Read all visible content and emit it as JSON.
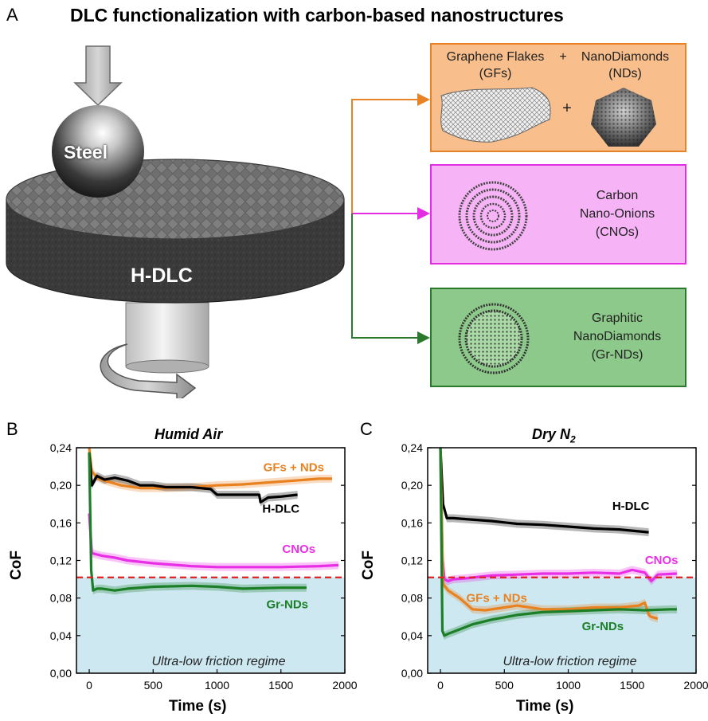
{
  "panel_a": {
    "letter": "A",
    "title": "DLC functionalization with carbon-based nanostructures",
    "ball_label": "Steel",
    "disk_label": "H-DLC",
    "boxes": {
      "gf_title": "Graphene Flakes",
      "gf_abbr": "(GFs)",
      "plus_top": "+",
      "nd_title": "NanoDiamonds",
      "nd_abbr": "(NDs)",
      "plus": "+",
      "cno_line1": "Carbon",
      "cno_line2": "Nano-Onions",
      "cno_line3": "(CNOs)",
      "grnd_line1": "Graphitic",
      "grnd_line2": "NanoDiamonds",
      "grnd_line3": "(Gr-NDs)"
    },
    "colors": {
      "orange": "#e88227",
      "pink": "#e22ee0",
      "green": "#2b7a2c"
    }
  },
  "panel_b": {
    "letter": "B",
    "title": "Humid Air",
    "region_label": "Ultra-low friction regime",
    "series_labels": {
      "gfs_nds": "GFs + NDs",
      "hdlc": "H-DLC",
      "cnos": "CNOs",
      "grnds": "Gr-NDs"
    }
  },
  "panel_c": {
    "letter": "C",
    "title_main": "Dry N",
    "title_sub": "2",
    "region_label": "Ultra-low friction regime",
    "series_labels": {
      "gfs_nds": "GFs + NDs",
      "hdlc": "H-DLC",
      "cnos": "CNOs",
      "grnds": "Gr-NDs"
    }
  },
  "axes": {
    "ylabel": "CoF",
    "xlabel": "Time (s)",
    "yticks": [
      "0,00",
      "0,04",
      "0,08",
      "0,12",
      "0,16",
      "0,20",
      "0,24"
    ],
    "xticks": [
      "0",
      "500",
      "1000",
      "1500",
      "2000"
    ]
  },
  "chart_data": [
    {
      "type": "line",
      "title": "Humid Air",
      "xlabel": "Time (s)",
      "ylabel": "CoF",
      "xlim": [
        -100,
        2000
      ],
      "ylim": [
        0,
        0.24
      ],
      "threshold": 0.102,
      "series": [
        {
          "name": "GFs + NDs",
          "color": "#e8811f",
          "x": [
            0,
            20,
            60,
            120,
            250,
            400,
            600,
            800,
            1000,
            1200,
            1400,
            1600,
            1800,
            1900
          ],
          "y": [
            0.24,
            0.215,
            0.208,
            0.205,
            0.2,
            0.197,
            0.197,
            0.198,
            0.2,
            0.201,
            0.203,
            0.205,
            0.207,
            0.207
          ]
        },
        {
          "name": "H-DLC",
          "color": "#000000",
          "x": [
            0,
            20,
            60,
            120,
            200,
            300,
            400,
            500,
            600,
            800,
            950,
            1000,
            1100,
            1200,
            1330,
            1340,
            1400,
            1500,
            1630
          ],
          "y": [
            0.235,
            0.2,
            0.21,
            0.206,
            0.208,
            0.205,
            0.2,
            0.2,
            0.198,
            0.198,
            0.196,
            0.19,
            0.19,
            0.19,
            0.19,
            0.182,
            0.187,
            0.188,
            0.19
          ]
        },
        {
          "name": "CNOs",
          "color": "#e92fe6",
          "x": [
            0,
            20,
            40,
            100,
            200,
            300,
            500,
            800,
            1000,
            1200,
            1500,
            1800,
            1950
          ],
          "y": [
            0.17,
            0.128,
            0.127,
            0.125,
            0.123,
            0.12,
            0.117,
            0.114,
            0.113,
            0.113,
            0.113,
            0.114,
            0.115
          ]
        },
        {
          "name": "Gr-NDs",
          "color": "#1a7f27",
          "x": [
            0,
            15,
            30,
            60,
            100,
            200,
            300,
            500,
            800,
            1000,
            1200,
            1500,
            1700
          ],
          "y": [
            0.235,
            0.11,
            0.088,
            0.09,
            0.09,
            0.088,
            0.09,
            0.092,
            0.093,
            0.092,
            0.09,
            0.091,
            0.091
          ]
        }
      ]
    },
    {
      "type": "line",
      "title": "Dry N2",
      "xlabel": "Time (s)",
      "ylabel": "CoF",
      "xlim": [
        -100,
        2000
      ],
      "ylim": [
        0,
        0.24
      ],
      "threshold": 0.102,
      "series": [
        {
          "name": "H-DLC",
          "color": "#000000",
          "x": [
            0,
            20,
            50,
            100,
            200,
            400,
            600,
            800,
            1000,
            1200,
            1400,
            1630
          ],
          "y": [
            0.24,
            0.18,
            0.165,
            0.165,
            0.164,
            0.162,
            0.159,
            0.158,
            0.156,
            0.154,
            0.153,
            0.15
          ]
        },
        {
          "name": "CNOs",
          "color": "#e92fe6",
          "x": [
            0,
            15,
            30,
            60,
            100,
            200,
            400,
            600,
            800,
            1000,
            1200,
            1400,
            1500,
            1600,
            1650,
            1700,
            1850
          ],
          "y": [
            0.24,
            0.125,
            0.1,
            0.098,
            0.1,
            0.101,
            0.104,
            0.105,
            0.106,
            0.106,
            0.107,
            0.106,
            0.11,
            0.107,
            0.098,
            0.105,
            0.106
          ]
        },
        {
          "name": "GFs + NDs",
          "color": "#e8811f",
          "x": [
            0,
            20,
            60,
            150,
            250,
            350,
            500,
            600,
            800,
            1000,
            1200,
            1400,
            1550,
            1600,
            1630,
            1650,
            1700
          ],
          "y": [
            0.24,
            0.095,
            0.088,
            0.08,
            0.068,
            0.067,
            0.07,
            0.072,
            0.068,
            0.068,
            0.07,
            0.07,
            0.072,
            0.075,
            0.062,
            0.06,
            0.058
          ]
        },
        {
          "name": "Gr-NDs",
          "color": "#1a7f27",
          "x": [
            0,
            15,
            30,
            60,
            120,
            250,
            400,
            600,
            800,
            1000,
            1200,
            1400,
            1600,
            1800,
            1850
          ],
          "y": [
            0.24,
            0.045,
            0.04,
            0.042,
            0.045,
            0.052,
            0.057,
            0.062,
            0.065,
            0.066,
            0.067,
            0.068,
            0.067,
            0.068,
            0.068
          ]
        }
      ]
    }
  ]
}
